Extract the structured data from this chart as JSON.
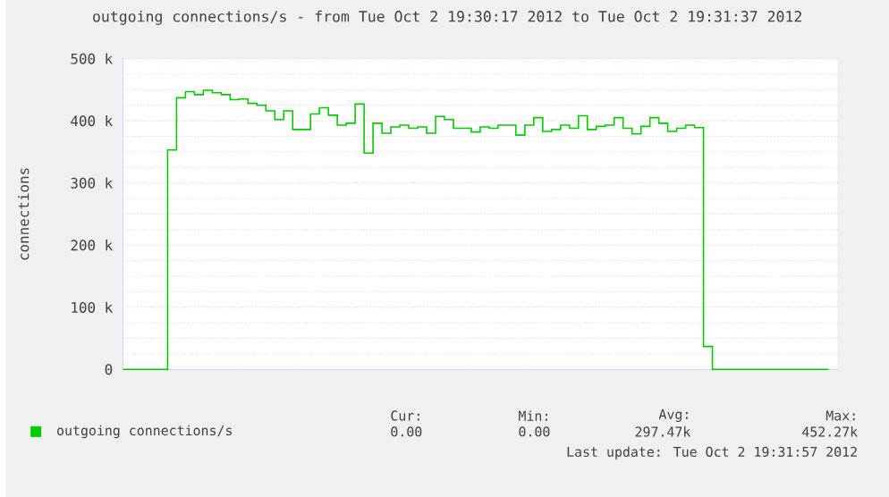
{
  "chart_data": {
    "type": "step",
    "title": "outgoing connections/s - from Tue Oct  2 19:30:17 2012 to Tue Oct  2 19:31:37 2012",
    "ylabel": "connections",
    "categories": [
      null,
      null,
      null,
      null,
      null,
      null,
      null,
      null,
      null,
      null,
      null,
      null,
      null,
      null,
      null,
      null,
      null,
      null,
      null,
      null,
      null,
      null,
      null,
      null,
      null,
      null,
      null,
      null,
      null,
      null,
      null,
      null,
      null,
      null,
      null,
      null,
      null,
      null,
      null,
      null,
      null,
      null,
      null,
      null,
      null,
      null,
      null,
      null,
      null,
      null,
      null,
      null,
      null,
      null,
      null,
      null,
      null,
      null,
      null,
      null,
      null,
      null,
      null,
      null,
      null,
      null,
      null,
      null,
      null,
      null,
      null,
      null,
      null,
      null,
      null,
      null,
      null,
      null,
      null,
      null
    ],
    "series": [
      {
        "name": "outgoing connections/s",
        "color": "#00cc00",
        "values": [
          0,
          0,
          0,
          0,
          0,
          353000,
          437000,
          447000,
          442000,
          449000,
          445000,
          442000,
          434000,
          435000,
          428000,
          425000,
          416000,
          402000,
          416000,
          386000,
          386000,
          411000,
          421000,
          409000,
          393000,
          396000,
          427000,
          348000,
          396000,
          380000,
          390000,
          393000,
          388000,
          390000,
          380000,
          407000,
          402000,
          388000,
          388000,
          382000,
          390000,
          388000,
          393000,
          393000,
          377000,
          393000,
          405000,
          383000,
          386000,
          393000,
          388000,
          408000,
          386000,
          391000,
          393000,
          405000,
          388000,
          379000,
          391000,
          405000,
          396000,
          383000,
          388000,
          393000,
          389000,
          37000,
          0,
          0,
          0,
          0,
          0,
          0,
          0,
          0,
          0,
          0,
          0,
          0,
          0,
          0
        ]
      }
    ],
    "ylim": [
      0,
      500000
    ],
    "yticks": [
      {
        "value": 0,
        "label": "0"
      },
      {
        "value": 100000,
        "label": "100 k"
      },
      {
        "value": 200000,
        "label": "200 k"
      },
      {
        "value": 300000,
        "label": "300 k"
      },
      {
        "value": 400000,
        "label": "400 k"
      },
      {
        "value": 500000,
        "label": "500 k"
      }
    ],
    "grid": "y",
    "legend": "bottom",
    "annotations": [
      "Cur:",
      "Min:",
      "Avg:",
      "Max:",
      "0.00",
      "0.00",
      "297.47k",
      "452.27k",
      "Last update: Tue Oct  2 19:31:57 2012"
    ]
  }
}
